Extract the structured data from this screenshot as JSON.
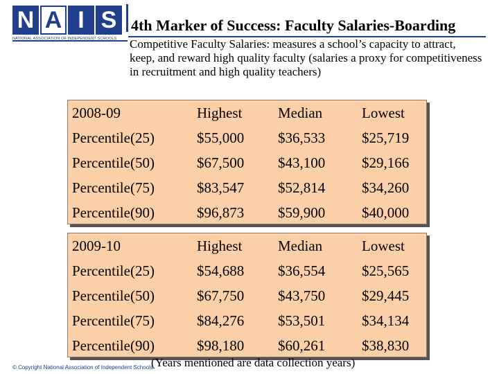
{
  "logo": {
    "letters": [
      "N",
      "A",
      "I",
      "S"
    ],
    "org_name": "NATIONAL ASSOCIATION OF INDEPENDENT SCHOOLS"
  },
  "title": "4th Marker of Success: Faculty Salaries-Boarding",
  "subtitle": "Competitive Faculty Salaries: measures a school’s capacity to attract, keep, and reward high quality faculty (salaries a proxy for competitiveness in recruitment and high quality teachers)",
  "tables": [
    {
      "header": [
        "2008-09",
        "Highest",
        "Median",
        "Lowest"
      ],
      "rows": [
        [
          "Percentile(25)",
          "$55,000",
          "$36,533",
          "$25,719"
        ],
        [
          "Percentile(50)",
          "$67,500",
          "$43,100",
          "$29,166"
        ],
        [
          "Percentile(75)",
          "$83,547",
          "$52,814",
          "$34,260"
        ],
        [
          "Percentile(90)",
          "$96,873",
          "$59,900",
          "$40,000"
        ]
      ]
    },
    {
      "header": [
        "2009-10",
        "Highest",
        "Median",
        "Lowest"
      ],
      "rows": [
        [
          "Percentile(25)",
          "$54,688",
          "$36,554",
          "$25,565"
        ],
        [
          "Percentile(50)",
          "$67,750",
          "$43,750",
          "$29,445"
        ],
        [
          "Percentile(75)",
          "$84,276",
          "$53,501",
          "$34,134"
        ],
        [
          "Percentile(90)",
          "$98,180",
          "$60,261",
          "$38,830"
        ]
      ]
    }
  ],
  "note": "(Years mentioned are data collection years)",
  "copyright": "© Copyright National Association of Independent Schools",
  "colors": {
    "brand_blue": "#1f3f8c",
    "table_fill": "#fbd0a8"
  }
}
